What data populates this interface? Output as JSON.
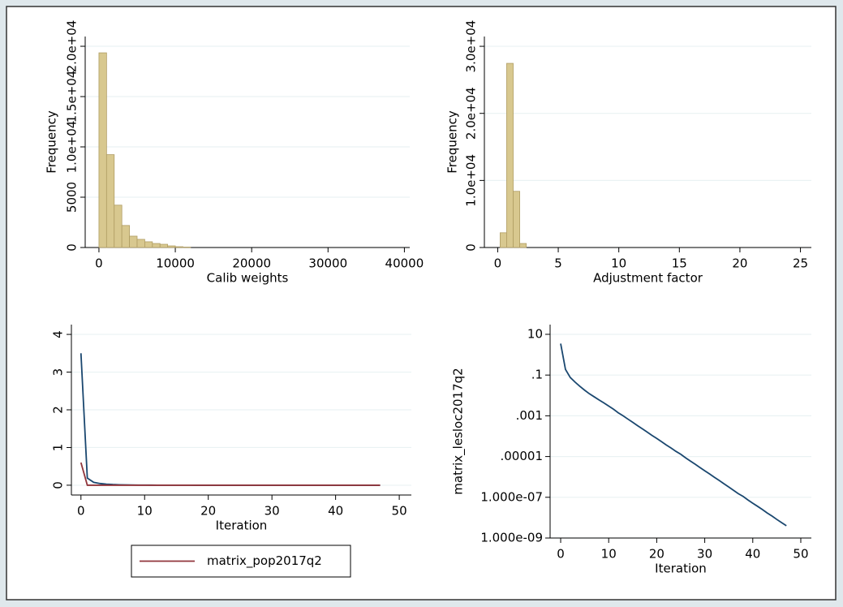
{
  "chart_data": [
    {
      "type": "histogram",
      "x_label": "Calib weights",
      "y_label": "Frequency",
      "color": "#d8c88f",
      "edge_color": "#b09d63",
      "bins": [
        0,
        1000,
        2000,
        3000,
        4000,
        5000,
        6000,
        7000,
        8000,
        9000,
        10000,
        11000,
        12000
      ],
      "values": [
        19350,
        9230,
        4210,
        2190,
        1130,
        810,
        570,
        400,
        320,
        160,
        80,
        40
      ],
      "xlim": [
        -1800,
        40700
      ],
      "xticks": [
        0,
        10000,
        20000,
        30000,
        40000
      ],
      "ylim": [
        0,
        20970
      ],
      "yticks": [
        0,
        5000,
        {
          "value": 10000,
          "label": "1.0e+04"
        },
        {
          "value": 15000,
          "label": "1.5e+04"
        },
        {
          "value": 20000,
          "label": "2.0e+04"
        }
      ],
      "grid": true
    },
    {
      "type": "histogram",
      "x_label": "Adjustment factor",
      "y_label": "Frequency",
      "color": "#d8c88f",
      "edge_color": "#b09d63",
      "bins": [
        0.2,
        0.74,
        1.28,
        1.82,
        2.36
      ],
      "values": [
        2200,
        27460,
        8380,
        600
      ],
      "xlim": [
        -1.1,
        25.9
      ],
      "xticks": [
        0,
        5,
        10,
        15,
        20,
        25
      ],
      "ylim": [
        0,
        31460
      ],
      "yticks": [
        0,
        {
          "value": 10000,
          "label": "1.0e+04"
        },
        {
          "value": 20000,
          "label": "2.0e+04"
        },
        {
          "value": 30000,
          "label": "3.0e+04"
        }
      ],
      "grid": true
    },
    {
      "type": "line",
      "x_label": "Iteration",
      "x": [
        0,
        1,
        2,
        3,
        4,
        5,
        6,
        7,
        8,
        9,
        10,
        11,
        12,
        13,
        14,
        15,
        16,
        17,
        18,
        19,
        20,
        21,
        22,
        23,
        24,
        25,
        26,
        27,
        28,
        29,
        30,
        31,
        32,
        33,
        34,
        35,
        36,
        37,
        38,
        39,
        40,
        41,
        42,
        43,
        44,
        45,
        46,
        47
      ],
      "series": [
        {
          "color": "#1a476f",
          "values": [
            3.5,
            0.19,
            0.076,
            0.045,
            0.028,
            0.018,
            0.012,
            0.0085,
            0.006,
            0.0043,
            0.003,
            0.0021,
            0.0014,
            0.001,
            0.00069,
            0.00048,
            0.00033,
            0.00023,
            0.00016,
            0.00011,
            7.8e-05,
            5.4e-05,
            3.7e-05,
            2.6e-05,
            1.8e-05,
            1.3e-05,
            8.7e-06,
            6e-06,
            4.2e-06,
            2.9e-06,
            2e-06,
            1.4e-06,
            9.6e-07,
            6.7e-07,
            4.6e-07,
            3.2e-07,
            2.2e-07,
            1.5e-07,
            1.1e-07,
            7.4e-08,
            5.1e-08,
            3.6e-08,
            2.5e-08,
            1.7e-08,
            1.2e-08,
            8.2e-09,
            5.7e-09,
            4e-09
          ]
        },
        {
          "name": "matrix_pop2017q2",
          "color": "#90353b",
          "values": [
            0.6,
            0,
            0,
            0,
            0,
            0,
            0,
            0,
            0,
            0,
            0,
            0,
            0,
            0,
            0,
            0,
            0,
            0,
            0,
            0,
            0,
            0,
            0,
            0,
            0,
            0,
            0,
            0,
            0,
            0,
            0,
            0,
            0,
            0,
            0,
            0,
            0,
            0,
            0,
            0,
            0,
            0,
            0,
            0,
            0,
            0,
            0,
            0
          ]
        }
      ],
      "xlim": [
        -1.5,
        51.9
      ],
      "xticks": [
        0,
        10,
        20,
        30,
        40,
        50
      ],
      "ylim": [
        -0.26,
        4.26
      ],
      "yticks": [
        0,
        1,
        2,
        3,
        4
      ],
      "grid": true,
      "legend": "bottom"
    },
    {
      "type": "line",
      "x_label": "Iteration",
      "y_label": "matrix_lesloc2017q2",
      "x": [
        0,
        1,
        2,
        3,
        4,
        5,
        6,
        7,
        8,
        9,
        10,
        11,
        12,
        13,
        14,
        15,
        16,
        17,
        18,
        19,
        20,
        21,
        22,
        23,
        24,
        25,
        26,
        27,
        28,
        29,
        30,
        31,
        32,
        33,
        34,
        35,
        36,
        37,
        38,
        39,
        40,
        41,
        42,
        43,
        44,
        45,
        46,
        47
      ],
      "series": [
        {
          "color": "#1a476f",
          "values": [
            3.5,
            0.19,
            0.076,
            0.045,
            0.028,
            0.018,
            0.012,
            0.0085,
            0.006,
            0.0043,
            0.003,
            0.0021,
            0.0014,
            0.001,
            0.00069,
            0.00048,
            0.00033,
            0.00023,
            0.00016,
            0.00011,
            7.8e-05,
            5.4e-05,
            3.7e-05,
            2.6e-05,
            1.8e-05,
            1.3e-05,
            8.7e-06,
            6e-06,
            4.2e-06,
            2.9e-06,
            2e-06,
            1.4e-06,
            9.6e-07,
            6.7e-07,
            4.6e-07,
            3.2e-07,
            2.2e-07,
            1.5e-07,
            1.1e-07,
            7.4e-08,
            5.1e-08,
            3.6e-08,
            2.5e-08,
            1.7e-08,
            1.2e-08,
            8.2e-09,
            5.7e-09,
            4e-09
          ]
        }
      ],
      "xlim": [
        -2.2,
        52.2
      ],
      "xticks": [
        0,
        10,
        20,
        30,
        40,
        50
      ],
      "ylim": [
        1e-09,
        30
      ],
      "log_y": true,
      "yticks": [
        10,
        {
          "value": 0.1,
          "label": ".1"
        },
        {
          "value": 0.001,
          "label": ".001"
        },
        {
          "value": 1e-05,
          "label": ".00001"
        },
        {
          "value": 1e-07,
          "label": "1.000e-07"
        },
        {
          "value": 1e-09,
          "label": "1.000e-09"
        }
      ],
      "grid": true
    }
  ]
}
